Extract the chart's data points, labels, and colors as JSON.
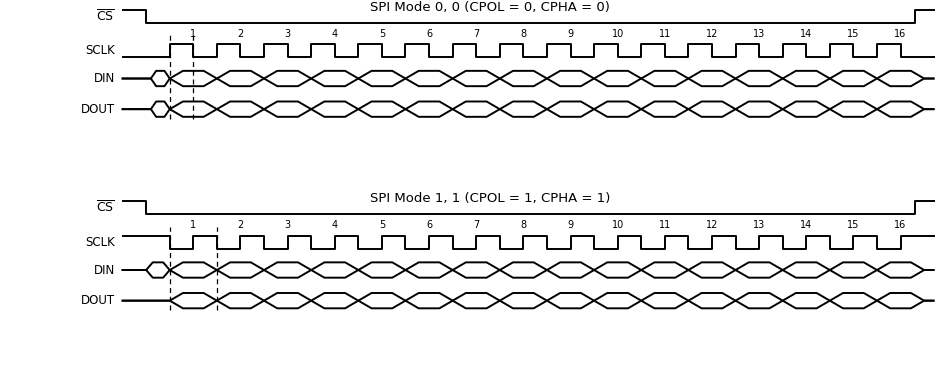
{
  "title1": "SPI Mode 0, 0 (CPOL = 0, CPHA = 0)",
  "title2": "SPI Mode 1, 1 (CPOL = 1, CPHA = 1)",
  "num_bits": 16,
  "line_color": "#000000",
  "bg_color": "#ffffff",
  "label_fontsize": 8.5,
  "title_fontsize": 9.5,
  "bit_labels": [
    "1",
    "2",
    "3",
    "4",
    "5",
    "6",
    "7",
    "8",
    "9",
    "10",
    "11",
    "12",
    "13",
    "14",
    "15",
    "16"
  ],
  "lw": 1.4
}
